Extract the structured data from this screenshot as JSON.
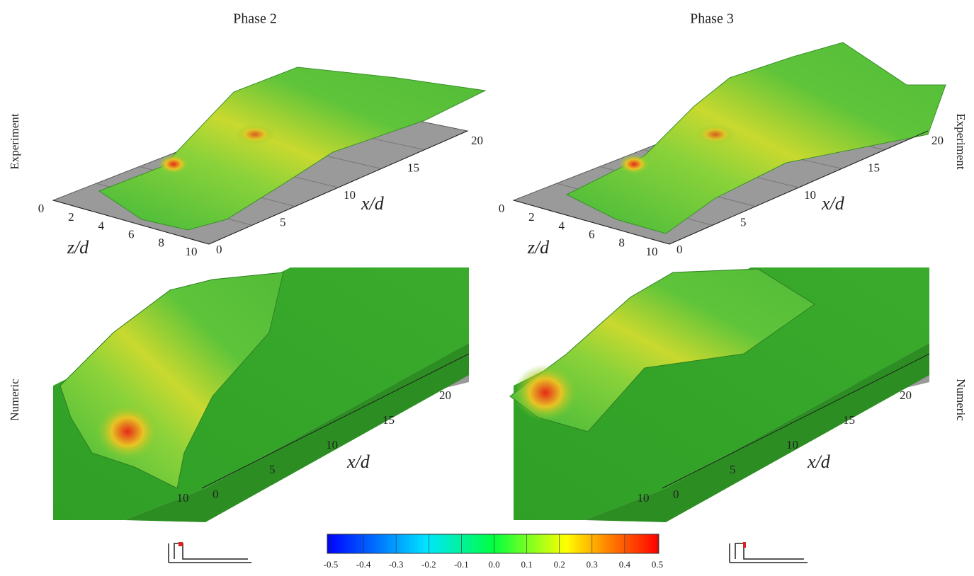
{
  "columns": [
    {
      "title": "Phase 2"
    },
    {
      "title": "Phase 3"
    }
  ],
  "row_labels": {
    "left": [
      "Experiment",
      "Numeric"
    ],
    "right": [
      "Experiment",
      "Numeric"
    ]
  },
  "panels": [
    {
      "x_label": "x/d",
      "z_label": "z/d",
      "x_ticks": [
        "0",
        "5",
        "10",
        "15",
        "20"
      ],
      "z_ticks": [
        "0",
        "2",
        "4",
        "6",
        "8",
        "10"
      ]
    },
    {
      "x_label": "x/d",
      "z_label": "z/d",
      "x_ticks": [
        "0",
        "5",
        "10",
        "15",
        "20"
      ],
      "z_ticks": [
        "0",
        "2",
        "4",
        "6",
        "8",
        "10"
      ]
    },
    {
      "x_label": "x/d",
      "x_ticks": [
        "0",
        "5",
        "10",
        "15",
        "20"
      ],
      "z_ticks": [
        "10"
      ]
    },
    {
      "x_label": "x/d",
      "x_ticks": [
        "0",
        "5",
        "10",
        "15",
        "20"
      ],
      "z_ticks": [
        "10"
      ]
    }
  ],
  "colorbar": {
    "ticks": [
      "-0.5",
      "-0.4",
      "-0.3",
      "-0.2",
      "-0.1",
      "0.0",
      "0.1",
      "0.2",
      "0.3",
      "0.4",
      "0.5"
    ]
  }
}
